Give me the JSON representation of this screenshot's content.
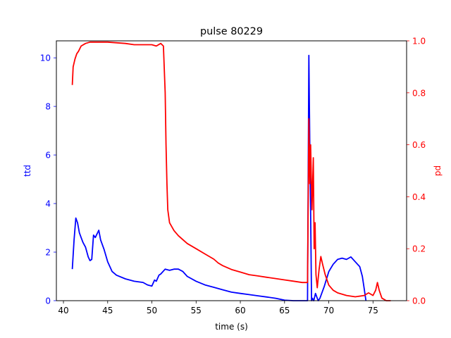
{
  "chart_data": {
    "type": "line",
    "title": "pulse 80229",
    "xlabel": "time (s)",
    "ylabel_left": "ttd",
    "ylabel_right": "pd",
    "xlim": [
      39.2,
      78.8
    ],
    "ylim_left": [
      0,
      10.7
    ],
    "ylim_right": [
      0,
      1.0
    ],
    "xticks": [
      40,
      45,
      50,
      55,
      60,
      65,
      70,
      75
    ],
    "yticks_left": [
      0,
      2,
      4,
      6,
      8,
      10
    ],
    "yticks_right": [
      0.0,
      0.2,
      0.4,
      0.6,
      0.8,
      1.0
    ],
    "yticklabels_right": [
      "0.0",
      "0.2",
      "0.4",
      "0.6",
      "0.8",
      "1.0"
    ],
    "grid": false,
    "colors": {
      "left": "#0000ff",
      "right": "#ff0000"
    },
    "series": [
      {
        "axis": "left",
        "x": [
          41.0,
          41.2,
          41.4,
          41.6,
          41.8,
          42.0,
          42.2,
          42.5,
          42.8,
          43.0,
          43.2,
          43.4,
          43.6,
          43.8,
          44.0,
          44.2,
          44.4,
          44.6,
          45.0,
          45.5,
          46.0,
          47.0,
          48.0,
          49.0,
          49.5,
          50.0,
          50.3,
          50.5,
          50.8,
          51.0,
          51.5,
          52.0,
          52.5,
          53.0,
          53.5,
          54.0,
          55.0,
          56.0,
          57.0,
          58.0,
          59.0,
          60.0,
          61.0,
          62.0,
          63.0,
          64.0,
          65.0,
          66.0,
          66.5,
          67.2,
          67.6,
          67.75,
          67.85,
          67.95,
          68.05,
          68.15,
          68.3,
          68.5,
          68.8,
          69.0,
          69.5,
          70.0,
          70.5,
          71.0,
          71.5,
          72.0,
          72.5,
          73.0,
          73.5,
          73.8,
          74.0,
          74.2
        ],
        "y": [
          1.3,
          2.5,
          3.4,
          3.2,
          2.8,
          2.6,
          2.4,
          2.2,
          1.8,
          1.65,
          1.7,
          2.7,
          2.6,
          2.75,
          2.9,
          2.5,
          2.3,
          2.1,
          1.6,
          1.2,
          1.05,
          0.9,
          0.8,
          0.75,
          0.65,
          0.6,
          0.85,
          0.8,
          1.05,
          1.1,
          1.3,
          1.25,
          1.3,
          1.3,
          1.2,
          1.0,
          0.8,
          0.65,
          0.55,
          0.45,
          0.35,
          0.3,
          0.25,
          0.2,
          0.15,
          0.1,
          0.02,
          0.0,
          0.0,
          0.0,
          0.0,
          10.1,
          6.5,
          3.7,
          0.0,
          0.1,
          0.0,
          0.3,
          0.0,
          0.1,
          0.6,
          1.2,
          1.5,
          1.7,
          1.75,
          1.7,
          1.8,
          1.6,
          1.4,
          1.0,
          0.5,
          0.0
        ]
      },
      {
        "axis": "right",
        "x": [
          41.0,
          41.1,
          41.3,
          41.5,
          41.7,
          42.0,
          42.5,
          43.0,
          45.0,
          47.0,
          48.0,
          49.0,
          50.0,
          50.5,
          51.0,
          51.3,
          51.5,
          51.6,
          51.7,
          51.8,
          52.0,
          52.5,
          53.0,
          54.0,
          55.0,
          56.0,
          57.0,
          57.5,
          58.0,
          59.0,
          60.0,
          61.0,
          62.0,
          63.0,
          64.0,
          65.0,
          66.0,
          67.0,
          67.6,
          67.75,
          67.85,
          67.95,
          68.1,
          68.25,
          68.35,
          68.45,
          68.55,
          68.7,
          68.9,
          69.1,
          69.3,
          69.6,
          70.0,
          70.5,
          71.0,
          72.0,
          73.0,
          74.0,
          74.5,
          75.0,
          75.3,
          75.5,
          75.7,
          76.0,
          76.5,
          77.0
        ],
        "y": [
          0.83,
          0.9,
          0.93,
          0.95,
          0.96,
          0.98,
          0.99,
          0.995,
          0.995,
          0.99,
          0.985,
          0.985,
          0.985,
          0.98,
          0.99,
          0.98,
          0.8,
          0.6,
          0.45,
          0.35,
          0.3,
          0.27,
          0.25,
          0.22,
          0.2,
          0.18,
          0.16,
          0.145,
          0.135,
          0.12,
          0.11,
          0.1,
          0.095,
          0.09,
          0.085,
          0.08,
          0.075,
          0.07,
          0.07,
          0.7,
          0.45,
          0.6,
          0.35,
          0.55,
          0.2,
          0.3,
          0.1,
          0.05,
          0.12,
          0.17,
          0.14,
          0.1,
          0.06,
          0.04,
          0.03,
          0.02,
          0.015,
          0.02,
          0.03,
          0.02,
          0.04,
          0.07,
          0.04,
          0.01,
          0.0,
          0.0
        ]
      }
    ]
  }
}
